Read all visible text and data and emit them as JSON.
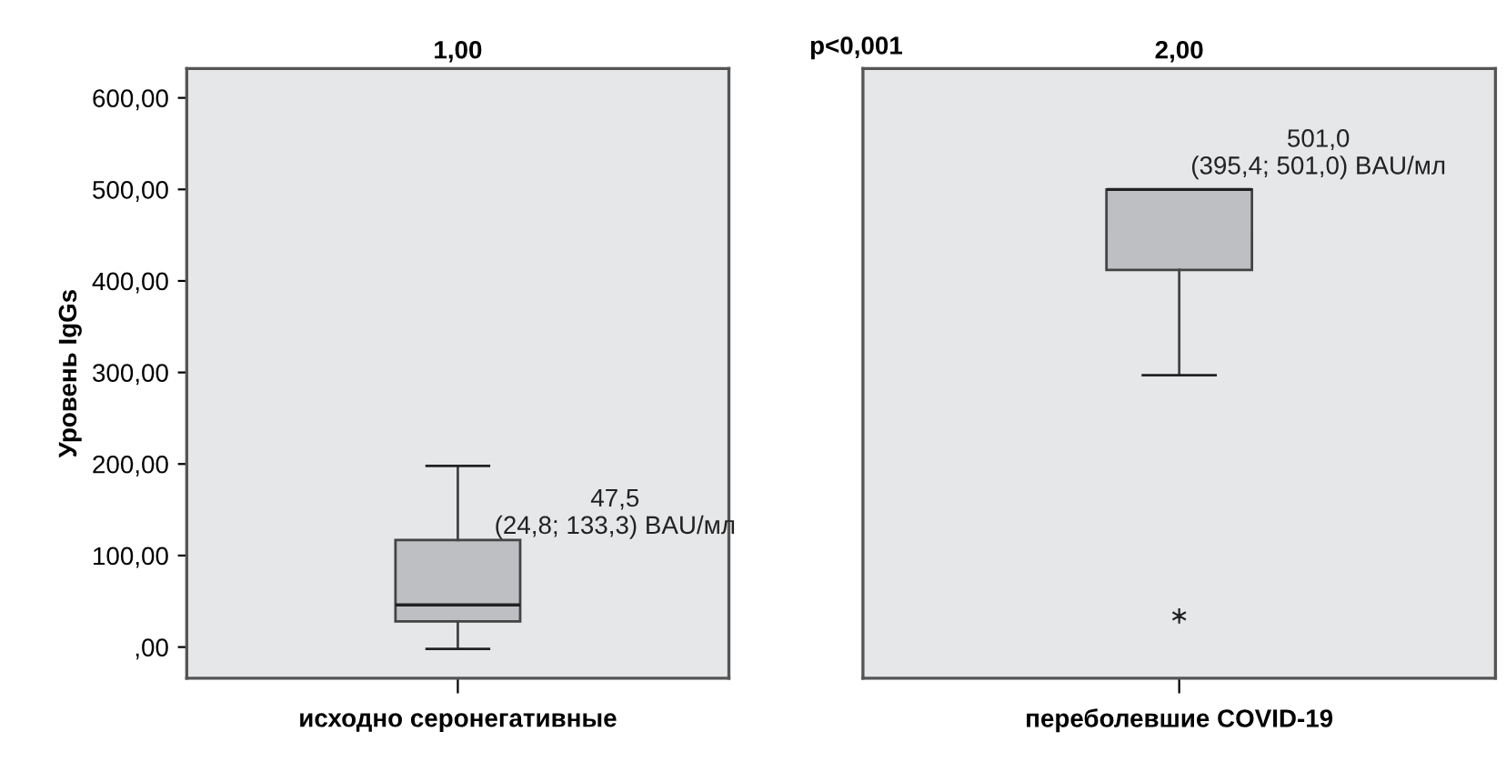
{
  "chart_data": [
    {
      "type": "box",
      "title": "1,00",
      "ylabel": "Уровень IgGs",
      "categories": [
        "исходно серонегативные"
      ],
      "boxes": [
        {
          "low": -2,
          "q1": 28,
          "median": 46,
          "q3": 117,
          "high": 198
        }
      ],
      "colors": [
        "#bebfc3"
      ],
      "ylim": [
        -34,
        632
      ],
      "yticks": [
        {
          "value": 0,
          "label": ",00"
        },
        {
          "value": 100,
          "label": "100,00"
        },
        {
          "value": 200,
          "label": "200,00"
        },
        {
          "value": 300,
          "label": "300,00"
        },
        {
          "value": 400,
          "label": "400,00"
        },
        {
          "value": 500,
          "label": "500,00"
        },
        {
          "value": 600,
          "label": "600,00"
        }
      ],
      "annotations": [
        "47,5\n(24,8; 133,3) BAU/мл",
        "p<0,001"
      ]
    },
    {
      "type": "box",
      "title": "2,00",
      "categories": [
        "переболевшие COVID-19"
      ],
      "boxes": [
        {
          "low": 297,
          "q1": 412,
          "median": 500,
          "q3": 500,
          "high": 500,
          "outliers": [
            34
          ]
        }
      ],
      "colors": [
        "#bebfc3"
      ],
      "ylim": [
        -34,
        632
      ],
      "tick_labels": "x",
      "annotations": [
        "501,0\n(395,4; 501,0) BAU/мл"
      ]
    }
  ]
}
